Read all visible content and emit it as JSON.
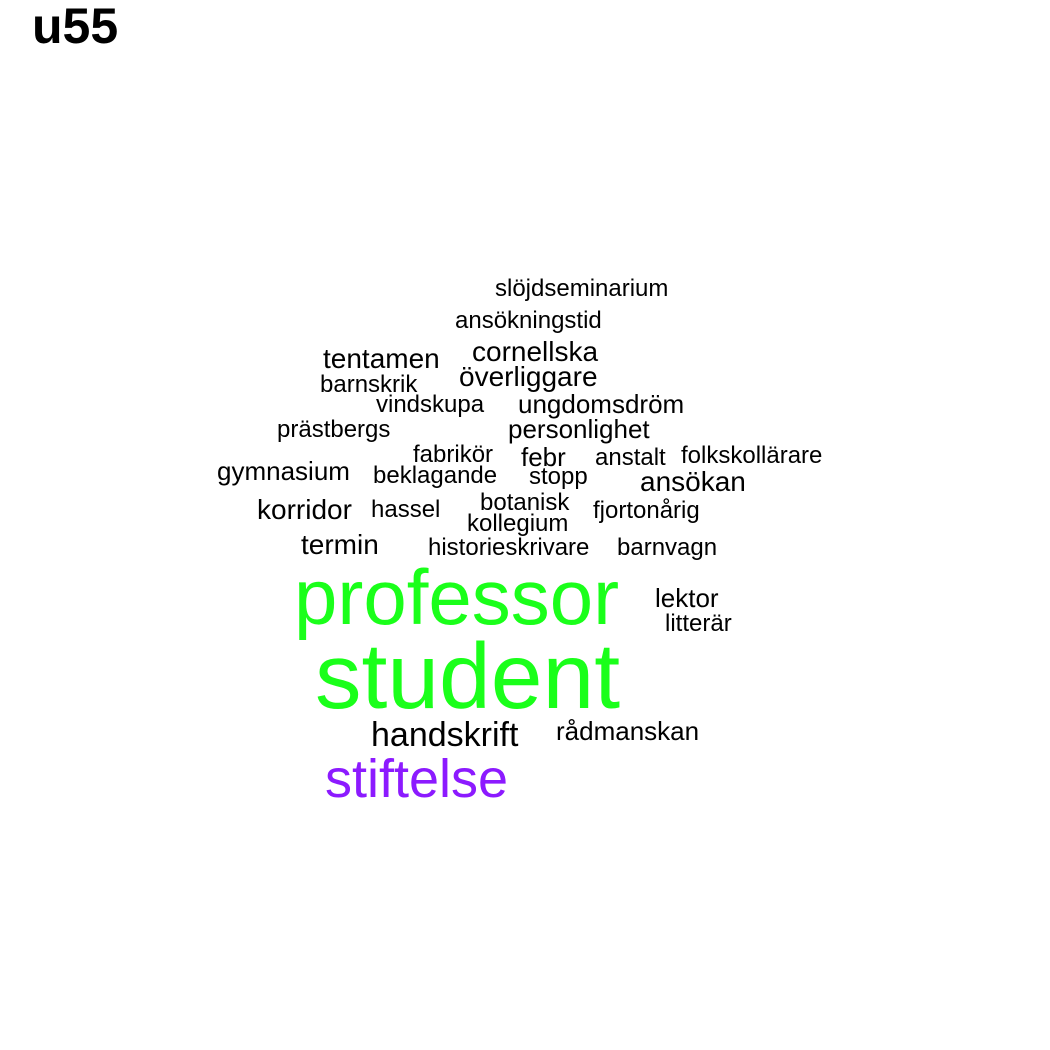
{
  "title": "u55",
  "colors": {
    "default": "#000000",
    "green": "#1aff1a",
    "purple": "#8c1aff"
  },
  "words": [
    {
      "id": "slojdseminarium",
      "text": "slöjdseminarium"
    },
    {
      "id": "ansokningstid",
      "text": "ansökningstid"
    },
    {
      "id": "tentamen",
      "text": "tentamen"
    },
    {
      "id": "cornellska",
      "text": "cornellska"
    },
    {
      "id": "barnskrik",
      "text": "barnskrik"
    },
    {
      "id": "overliggare",
      "text": "överliggare"
    },
    {
      "id": "vindskupa",
      "text": "vindskupa"
    },
    {
      "id": "ungdomsdrom",
      "text": "ungdomsdröm"
    },
    {
      "id": "prastbergs",
      "text": "prästbergs"
    },
    {
      "id": "personlighet",
      "text": "personlighet"
    },
    {
      "id": "fabrikor",
      "text": "fabrikör"
    },
    {
      "id": "febr",
      "text": "febr"
    },
    {
      "id": "anstalt",
      "text": "anstalt"
    },
    {
      "id": "folkskollarare",
      "text": "folkskollärare"
    },
    {
      "id": "gymnasium",
      "text": "gymnasium"
    },
    {
      "id": "beklagande",
      "text": "beklagande"
    },
    {
      "id": "stopp",
      "text": "stopp"
    },
    {
      "id": "ansokan",
      "text": "ansökan"
    },
    {
      "id": "korridor",
      "text": "korridor"
    },
    {
      "id": "hassel",
      "text": "hassel"
    },
    {
      "id": "botanisk",
      "text": "botanisk"
    },
    {
      "id": "fjortonarig",
      "text": "fjortonårig"
    },
    {
      "id": "kollegium",
      "text": "kollegium"
    },
    {
      "id": "termin",
      "text": "termin"
    },
    {
      "id": "historieskrivare",
      "text": "historieskrivare"
    },
    {
      "id": "barnvagn",
      "text": "barnvagn"
    },
    {
      "id": "professor",
      "text": "professor"
    },
    {
      "id": "lektor",
      "text": "lektor"
    },
    {
      "id": "litterar",
      "text": "litterär"
    },
    {
      "id": "student",
      "text": "student"
    },
    {
      "id": "handskrift",
      "text": "handskrift"
    },
    {
      "id": "radmanskan",
      "text": "rådmanskan"
    },
    {
      "id": "stiftelse",
      "text": "stiftelse"
    }
  ]
}
